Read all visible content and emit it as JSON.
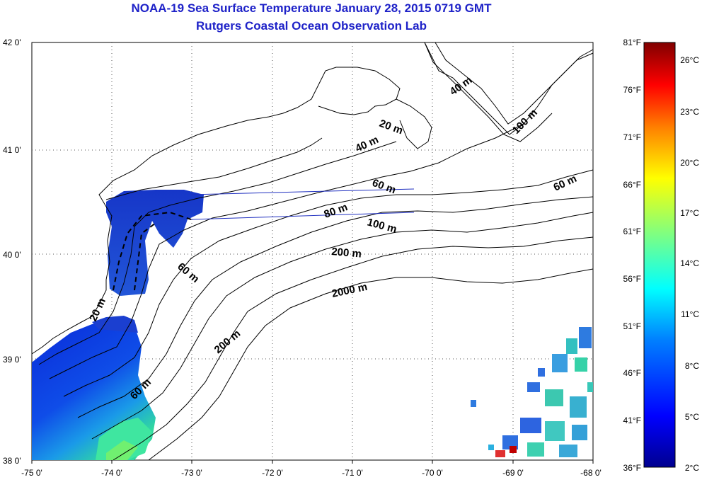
{
  "title_line1": "NOAA-19 Sea Surface Temperature January 28, 2015 0719 GMT",
  "title_line2": "Rutgers Coastal Ocean Observation Lab",
  "map": {
    "lon_range": [
      -75,
      -68
    ],
    "lat_range": [
      38,
      42
    ],
    "lon_ticks": [
      "-75 0'",
      "-74 0'",
      "-73 0'",
      "-72 0'",
      "-71 0'",
      "-70 0'",
      "-69 0'",
      "-68 0'"
    ],
    "lat_ticks": [
      "38 0'",
      "39 0'",
      "40 0'",
      "41 0'",
      "42 0'"
    ],
    "grid": "dotted",
    "land_color": "#ffffff",
    "contour_color": "#000000",
    "contour_labels": [
      "40 m",
      "100 m",
      "20 m",
      "40 m",
      "60 m",
      "60 m",
      "80 m",
      "100 m",
      "200 m",
      "60 m",
      "2000 m",
      "200 m",
      "60 m",
      "20 m"
    ]
  },
  "colorbar": {
    "fahrenheit_labels": [
      "81°F",
      "76°F",
      "71°F",
      "66°F",
      "61°F",
      "56°F",
      "51°F",
      "46°F",
      "41°F",
      "36°F"
    ],
    "celsius_labels": [
      "26°C",
      "23°C",
      "20°C",
      "17°C",
      "14°C",
      "11°C",
      "8°C",
      "5°C",
      "2°C"
    ],
    "colormap": [
      "#00008f",
      "#0000ff",
      "#0080ff",
      "#00ffff",
      "#80ff80",
      "#ffff00",
      "#ff8000",
      "#ff0000",
      "#800000"
    ]
  }
}
